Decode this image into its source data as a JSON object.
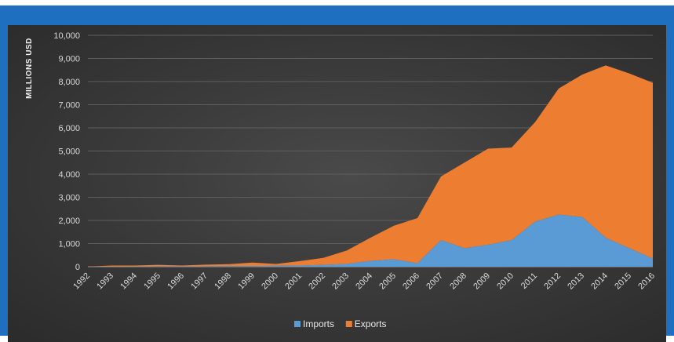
{
  "chart_data": {
    "type": "area",
    "stacked": true,
    "title": "",
    "xlabel": "",
    "ylabel": "MILLIONS USD",
    "ylim": [
      0,
      10000
    ],
    "y_ticks": [
      "0",
      "1,000",
      "2,000",
      "3,000",
      "4,000",
      "5,000",
      "6,000",
      "7,000",
      "8,000",
      "9,000",
      "10,000"
    ],
    "grid": true,
    "legend_position": "bottom",
    "categories": [
      "1992",
      "1993",
      "1994",
      "1995",
      "1996",
      "1997",
      "1998",
      "1999",
      "2000",
      "2001",
      "2002",
      "2003",
      "2004",
      "2005",
      "2006",
      "2007",
      "2008",
      "2009",
      "2010",
      "2011",
      "2012",
      "2013",
      "2014",
      "2015",
      "2016"
    ],
    "series": [
      {
        "name": "Imports",
        "color": "#5b9bd5",
        "values": [
          0,
          5,
          10,
          20,
          15,
          20,
          25,
          30,
          40,
          50,
          80,
          120,
          250,
          320,
          150,
          1150,
          800,
          950,
          1150,
          1950,
          2250,
          2150,
          1250,
          800,
          350
        ]
      },
      {
        "name": "Exports",
        "color": "#ed7d31",
        "values": [
          10,
          45,
          40,
          60,
          35,
          70,
          85,
          150,
          80,
          190,
          300,
          580,
          1000,
          1450,
          1950,
          2750,
          3700,
          4150,
          4000,
          4300,
          5450,
          6150,
          7450,
          7550,
          7600
        ]
      }
    ]
  }
}
